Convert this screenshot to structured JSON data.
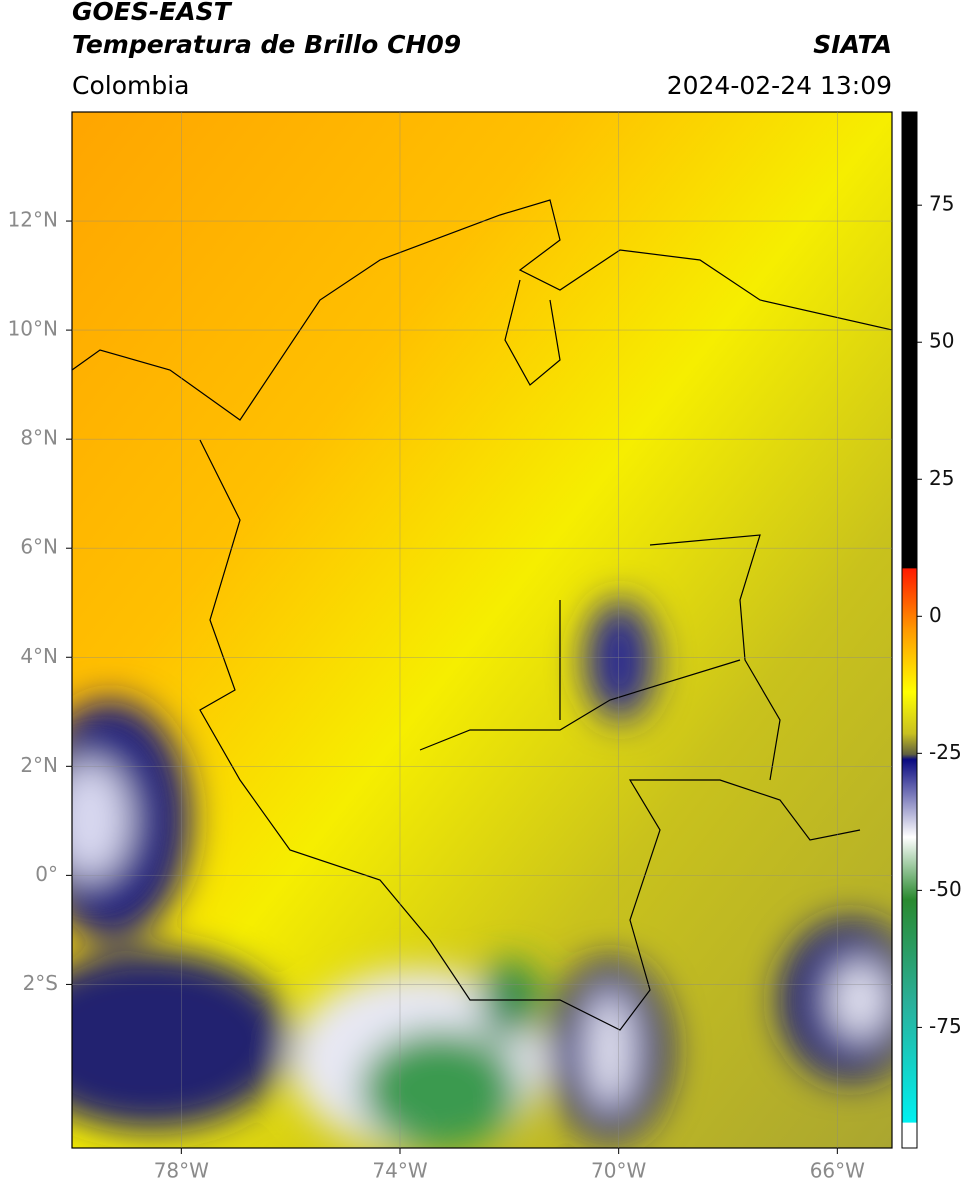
{
  "header": {
    "satellite": "GOES-EAST",
    "product": "Temperatura de Brillo CH09",
    "region": "Colombia",
    "source": "SIATA",
    "datetime": "2024-02-24 13:09"
  },
  "map": {
    "xlim": [
      -80,
      -65
    ],
    "ylim": [
      -5,
      14
    ],
    "xticks": [
      {
        "value": -78,
        "label": "78°W"
      },
      {
        "value": -74,
        "label": "74°W"
      },
      {
        "value": -70,
        "label": "70°W"
      },
      {
        "value": -66,
        "label": "66°W"
      }
    ],
    "yticks": [
      {
        "value": 12,
        "label": "12°N"
      },
      {
        "value": 10,
        "label": "10°N"
      },
      {
        "value": 8,
        "label": "8°N"
      },
      {
        "value": 6,
        "label": "6°N"
      },
      {
        "value": 4,
        "label": "4°N"
      },
      {
        "value": 2,
        "label": "2°N"
      },
      {
        "value": 0,
        "label": "0°"
      },
      {
        "value": -2,
        "label": "2°S"
      }
    ],
    "grid": true
  },
  "colorbar": {
    "lim": [
      -97,
      92
    ],
    "ticks": [
      75,
      50,
      25,
      0,
      -25,
      -50,
      -75
    ]
  }
}
